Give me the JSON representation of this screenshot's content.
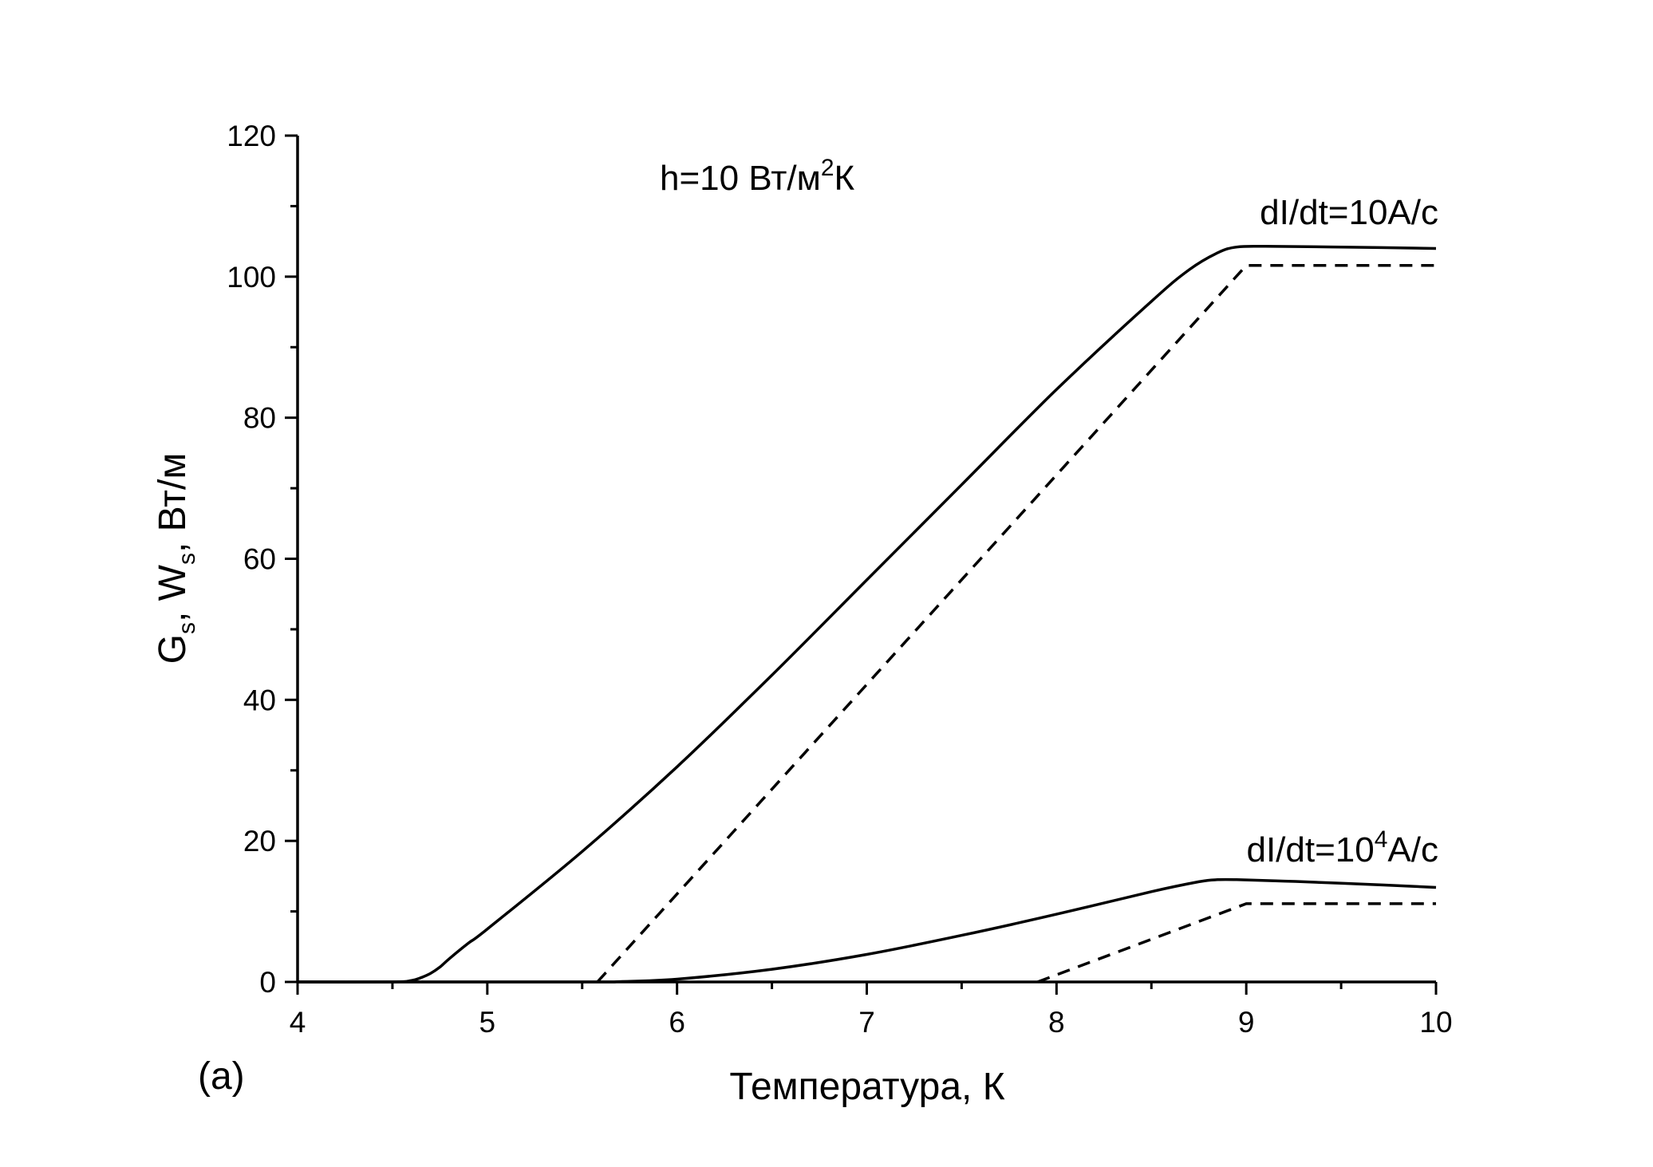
{
  "chart_data": {
    "type": "line",
    "x_axis": {
      "label": "Температура, К",
      "lim": [
        4,
        10
      ],
      "ticks": [
        4,
        5,
        6,
        7,
        8,
        9,
        10
      ],
      "tick_labels": [
        "4",
        "5",
        "6",
        "7",
        "8",
        "9",
        "10"
      ],
      "minor_step": 0.5
    },
    "y_axis": {
      "label": {
        "t1": "G",
        "s1": "s",
        "t2": ", W",
        "s2": "s",
        "t3": ", Вт/м"
      },
      "lim": [
        0,
        120
      ],
      "ticks": [
        0,
        20,
        40,
        60,
        80,
        100,
        120
      ],
      "tick_labels": [
        "0",
        "20",
        "40",
        "60",
        "80",
        "100",
        "120"
      ],
      "minor_step": 10
    },
    "grid": false,
    "panel_label": "(a)",
    "annotations": {
      "h": {
        "base": "h=10 Вт/м",
        "sup": "2",
        "tail": "К"
      },
      "rate_high": {
        "text": "dI/dt=10A/c"
      },
      "rate_low": {
        "base": "dI/dt=10",
        "sup": "4",
        "tail": "A/c"
      }
    },
    "series": [
      {
        "style": "solid",
        "color": "#000000",
        "x": [
          4.0,
          4.5,
          4.6,
          4.65,
          4.7,
          4.75,
          4.8,
          4.9,
          5.0,
          5.5,
          6.0,
          6.5,
          7.0,
          7.5,
          8.0,
          8.5,
          8.7,
          8.85,
          8.95,
          9.1,
          9.5,
          10.0
        ],
        "y": [
          0,
          0,
          0.2,
          0.6,
          1.2,
          2.1,
          3.3,
          5.5,
          7.5,
          18.5,
          30.5,
          43.5,
          57.0,
          70.5,
          84.0,
          96.5,
          101.0,
          103.4,
          104.2,
          104.3,
          104.2,
          104.0
        ]
      },
      {
        "style": "dashed",
        "color": "#000000",
        "x": [
          5.58,
          9.0,
          10.0
        ],
        "y": [
          0,
          101.6,
          101.6
        ]
      },
      {
        "style": "solid",
        "color": "#000000",
        "x": [
          4.0,
          5.5,
          5.7,
          6.0,
          6.5,
          7.0,
          7.5,
          8.0,
          8.5,
          8.75,
          8.85,
          8.95,
          9.2,
          9.5,
          10.0
        ],
        "y": [
          0,
          0,
          0.05,
          0.4,
          1.8,
          3.9,
          6.6,
          9.6,
          12.8,
          14.2,
          14.5,
          14.5,
          14.3,
          14.0,
          13.4
        ]
      },
      {
        "style": "dashed",
        "color": "#000000",
        "x": [
          7.9,
          9.0,
          10.0
        ],
        "y": [
          0,
          11.1,
          11.1
        ]
      }
    ]
  }
}
